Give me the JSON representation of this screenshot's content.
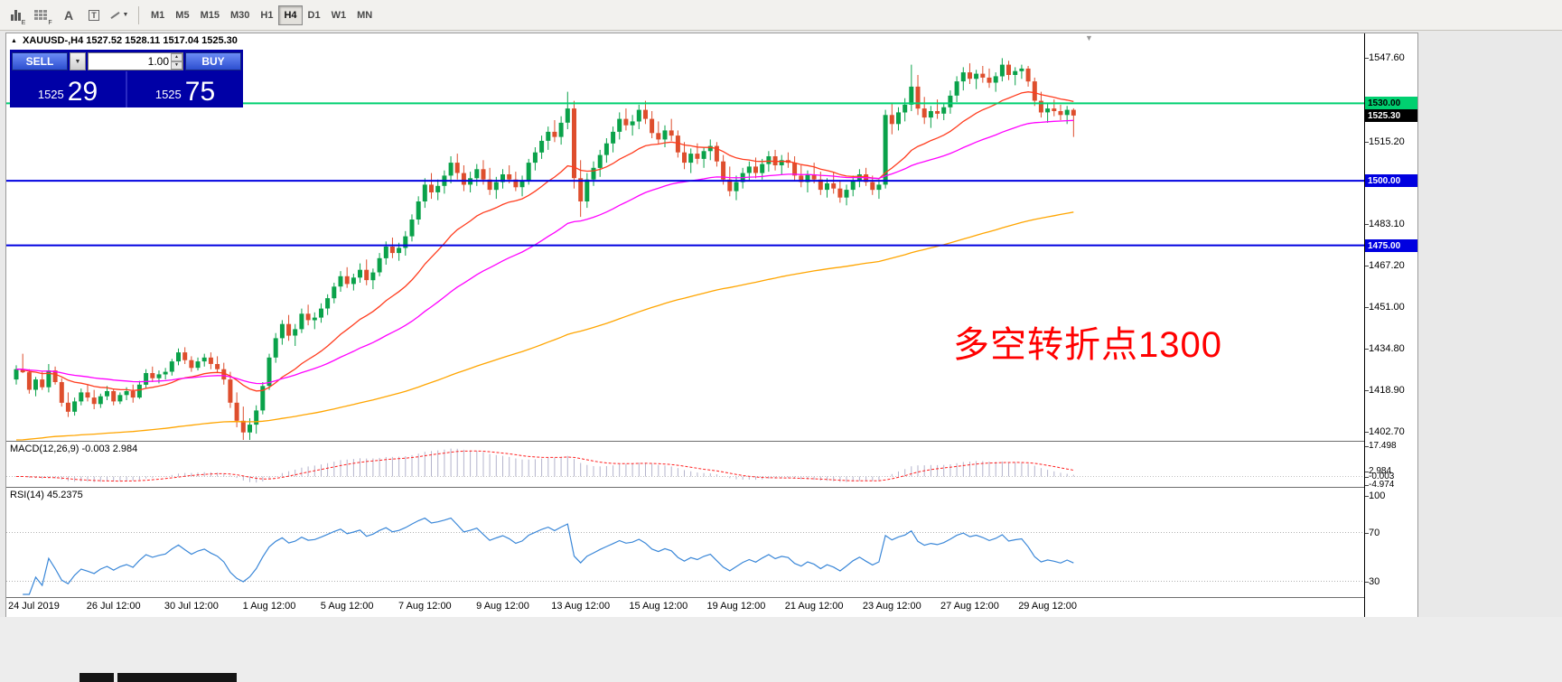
{
  "toolbar": {
    "icons": [
      {
        "name": "bar-chart-icon",
        "sub": "E"
      },
      {
        "name": "grid-icon",
        "sub": "F"
      },
      {
        "name": "text-label-icon",
        "sub": ""
      },
      {
        "name": "text-box-icon",
        "sub": ""
      },
      {
        "name": "line-style-icon",
        "sub": ""
      }
    ],
    "timeframes": [
      "M1",
      "M5",
      "M15",
      "M30",
      "H1",
      "H4",
      "D1",
      "W1",
      "MN"
    ],
    "active_timeframe": "H4"
  },
  "chart": {
    "symbol_timeframe": "XAUUSD-,H4",
    "ohlc_text": "1527.52 1528.11 1517.04 1525.30",
    "open": "1527.52",
    "high": "1528.11",
    "low": "1517.04",
    "close": "1525.30"
  },
  "trade_panel": {
    "sell_label": "SELL",
    "buy_label": "BUY",
    "volume": "1.00",
    "sell_price_small": "1525",
    "sell_price_big": "29",
    "buy_price_small": "1525",
    "buy_price_big": "75"
  },
  "annotation": {
    "text": "多空转折点1300",
    "color": "#ff0000"
  },
  "price_axis": {
    "gridlines": [
      {
        "text": "1547.60",
        "value": 1547.6
      },
      {
        "text": "1515.20",
        "value": 1515.2
      },
      {
        "text": "1483.10",
        "value": 1483.1
      },
      {
        "text": "1467.20",
        "value": 1467.2
      },
      {
        "text": "1451.00",
        "value": 1451.0
      },
      {
        "text": "1434.80",
        "value": 1434.8
      },
      {
        "text": "1418.90",
        "value": 1418.9
      },
      {
        "text": "1402.70",
        "value": 1402.7
      }
    ],
    "tags": [
      {
        "text": "1530.00",
        "value": 1530.0,
        "bg": "#00d070",
        "fg": "#000000"
      },
      {
        "text": "1525.30",
        "value": 1525.3,
        "bg": "#000000",
        "fg": "#ffffff"
      },
      {
        "text": "1500.00",
        "value": 1500.0,
        "bg": "#0000e0",
        "fg": "#ffffff"
      },
      {
        "text": "1475.00",
        "value": 1475.0,
        "bg": "#0000e0",
        "fg": "#ffffff"
      }
    ]
  },
  "hlines": [
    {
      "price": 1530.0,
      "color": "#00d070",
      "width": 2
    },
    {
      "price": 1500.0,
      "color": "#0000e0",
      "width": 2
    },
    {
      "price": 1475.0,
      "color": "#0000e0",
      "width": 2
    }
  ],
  "indicators": {
    "macd": {
      "label": "MACD(12,26,9)",
      "values_text": "-0.003 2.984",
      "fast": 12,
      "slow": 26,
      "signal": 9,
      "axis": [
        {
          "text": "17.498",
          "value": 17.498
        },
        {
          "text": "2.984",
          "value": 2.984
        },
        {
          "text": "-0.003",
          "value": -0.003
        },
        {
          "text": "-4.974",
          "value": -4.974
        }
      ]
    },
    "rsi": {
      "label": "RSI(14)",
      "value_text": "45.2375",
      "period": 14,
      "axis": [
        {
          "text": "100",
          "value": 100
        },
        {
          "text": "70",
          "value": 70
        },
        {
          "text": "30",
          "value": 30
        }
      ],
      "levels": [
        70,
        30
      ]
    }
  },
  "time_axis": {
    "labels": [
      {
        "text": "24 Jul 2019",
        "bar": 1
      },
      {
        "text": "26 Jul 12:00",
        "bar": 15
      },
      {
        "text": "30 Jul 12:00",
        "bar": 27
      },
      {
        "text": "1 Aug 12:00",
        "bar": 39
      },
      {
        "text": "5 Aug 12:00",
        "bar": 51
      },
      {
        "text": "7 Aug 12:00",
        "bar": 63
      },
      {
        "text": "9 Aug 12:00",
        "bar": 75
      },
      {
        "text": "13 Aug 12:00",
        "bar": 87
      },
      {
        "text": "15 Aug 12:00",
        "bar": 99
      },
      {
        "text": "19 Aug 12:00",
        "bar": 111
      },
      {
        "text": "21 Aug 12:00",
        "bar": 123
      },
      {
        "text": "23 Aug 12:00",
        "bar": 135
      },
      {
        "text": "27 Aug 12:00",
        "bar": 147
      },
      {
        "text": "29 Aug 12:00",
        "bar": 159
      }
    ]
  },
  "colors": {
    "up": "#0aa24a",
    "down": "#de4e2d",
    "macd_hist": "#b4b4cc",
    "macd_signal": "#ff2020",
    "rsi_line": "#3a87d8",
    "hline_green": "#00d070",
    "hline_blue": "#0000e0"
  },
  "chart_data": {
    "type": "candlestick",
    "symbol": "XAUUSD-",
    "timeframe": "H4",
    "title": "XAUUSD-,H4 1527.52 1528.11 1517.04 1525.30",
    "ylim": [
      1399.2,
      1555.7
    ],
    "grid": false,
    "x_range": "24 Jul 2019 - 30 Aug 2019",
    "moving_averages": [
      {
        "period": 20,
        "color": "#ff3c1e",
        "seed_offset": 0
      },
      {
        "period": 50,
        "color": "#ff00ff",
        "seed_offset": 0
      },
      {
        "period": 170,
        "color": "#ffa500",
        "seed_offset": -28
      }
    ],
    "candles": [
      [
        1423.0,
        1428.5,
        1421.0,
        1427.0
      ],
      [
        1427.0,
        1433.0,
        1425.5,
        1425.8
      ],
      [
        1425.8,
        1427.0,
        1417.5,
        1419.0
      ],
      [
        1419.0,
        1424.0,
        1416.5,
        1423.0
      ],
      [
        1423.0,
        1426.0,
        1419.0,
        1420.0
      ],
      [
        1420.0,
        1429.0,
        1418.0,
        1426.5
      ],
      [
        1426.5,
        1428.0,
        1421.0,
        1422.0
      ],
      [
        1422.0,
        1423.5,
        1412.5,
        1414.0
      ],
      [
        1414.0,
        1418.0,
        1408.5,
        1410.5
      ],
      [
        1410.5,
        1416.0,
        1409.0,
        1414.5
      ],
      [
        1414.5,
        1419.5,
        1413.0,
        1418.0
      ],
      [
        1418.0,
        1421.0,
        1414.5,
        1416.0
      ],
      [
        1416.0,
        1419.0,
        1411.5,
        1413.5
      ],
      [
        1413.5,
        1417.5,
        1412.0,
        1416.5
      ],
      [
        1416.5,
        1420.5,
        1415.0,
        1418.5
      ],
      [
        1418.5,
        1419.5,
        1413.0,
        1414.5
      ],
      [
        1414.5,
        1418.0,
        1413.5,
        1417.0
      ],
      [
        1417.0,
        1420.0,
        1415.0,
        1418.5
      ],
      [
        1418.5,
        1421.0,
        1414.0,
        1416.0
      ],
      [
        1416.0,
        1422.5,
        1415.5,
        1421.0
      ],
      [
        1421.0,
        1427.0,
        1419.5,
        1425.5
      ],
      [
        1425.5,
        1428.0,
        1422.0,
        1423.5
      ],
      [
        1423.5,
        1426.5,
        1421.5,
        1425.0
      ],
      [
        1425.0,
        1427.5,
        1423.0,
        1426.0
      ],
      [
        1426.0,
        1431.0,
        1424.5,
        1430.0
      ],
      [
        1430.0,
        1435.0,
        1428.5,
        1433.5
      ],
      [
        1433.5,
        1435.5,
        1429.0,
        1430.5
      ],
      [
        1430.5,
        1432.0,
        1426.0,
        1427.5
      ],
      [
        1427.5,
        1431.5,
        1426.5,
        1430.0
      ],
      [
        1430.0,
        1433.0,
        1428.0,
        1431.5
      ],
      [
        1431.5,
        1433.5,
        1427.0,
        1429.0
      ],
      [
        1429.0,
        1432.0,
        1425.5,
        1427.0
      ],
      [
        1427.0,
        1429.5,
        1421.0,
        1423.0
      ],
      [
        1423.0,
        1426.0,
        1412.0,
        1414.0
      ],
      [
        1414.0,
        1418.0,
        1404.5,
        1407.0
      ],
      [
        1407.0,
        1412.5,
        1399.5,
        1402.5
      ],
      [
        1402.5,
        1408.0,
        1398.5,
        1405.5
      ],
      [
        1405.5,
        1413.0,
        1402.0,
        1411.0
      ],
      [
        1411.0,
        1422.0,
        1409.5,
        1420.5
      ],
      [
        1420.5,
        1433.0,
        1419.0,
        1431.5
      ],
      [
        1431.5,
        1441.0,
        1429.5,
        1439.0
      ],
      [
        1439.0,
        1446.0,
        1436.5,
        1444.5
      ],
      [
        1444.5,
        1448.0,
        1438.0,
        1440.0
      ],
      [
        1440.0,
        1444.5,
        1436.0,
        1442.5
      ],
      [
        1442.5,
        1450.5,
        1441.0,
        1448.5
      ],
      [
        1448.5,
        1452.0,
        1444.0,
        1446.0
      ],
      [
        1446.0,
        1449.0,
        1442.5,
        1447.0
      ],
      [
        1447.0,
        1452.5,
        1445.0,
        1450.5
      ],
      [
        1450.5,
        1456.0,
        1448.0,
        1454.5
      ],
      [
        1454.5,
        1460.5,
        1452.5,
        1459.0
      ],
      [
        1459.0,
        1465.0,
        1457.0,
        1463.0
      ],
      [
        1463.0,
        1466.5,
        1458.5,
        1460.0
      ],
      [
        1460.0,
        1464.0,
        1457.5,
        1462.5
      ],
      [
        1462.5,
        1468.0,
        1460.5,
        1465.5
      ],
      [
        1465.5,
        1469.5,
        1459.5,
        1461.5
      ],
      [
        1461.5,
        1466.0,
        1458.0,
        1464.5
      ],
      [
        1464.5,
        1472.0,
        1463.0,
        1470.0
      ],
      [
        1470.0,
        1476.5,
        1467.5,
        1474.5
      ],
      [
        1474.5,
        1478.0,
        1470.0,
        1472.0
      ],
      [
        1472.0,
        1476.0,
        1469.0,
        1474.0
      ],
      [
        1474.0,
        1480.5,
        1471.0,
        1478.5
      ],
      [
        1478.5,
        1487.0,
        1476.5,
        1485.0
      ],
      [
        1485.0,
        1494.0,
        1483.0,
        1492.0
      ],
      [
        1492.0,
        1501.0,
        1489.5,
        1498.5
      ],
      [
        1498.5,
        1503.0,
        1493.0,
        1495.5
      ],
      [
        1495.5,
        1500.5,
        1492.5,
        1498.0
      ],
      [
        1498.0,
        1504.0,
        1495.0,
        1502.0
      ],
      [
        1502.0,
        1509.5,
        1499.0,
        1507.0
      ],
      [
        1507.0,
        1510.5,
        1500.5,
        1503.0
      ],
      [
        1503.0,
        1506.0,
        1496.0,
        1498.5
      ],
      [
        1498.5,
        1503.5,
        1495.5,
        1501.0
      ],
      [
        1501.0,
        1506.5,
        1498.0,
        1504.5
      ],
      [
        1504.5,
        1508.0,
        1498.5,
        1500.5
      ],
      [
        1500.5,
        1505.0,
        1494.5,
        1496.5
      ],
      [
        1496.5,
        1501.5,
        1493.0,
        1499.5
      ],
      [
        1499.5,
        1504.5,
        1497.0,
        1502.5
      ],
      [
        1502.5,
        1506.0,
        1499.0,
        1500.5
      ],
      [
        1500.5,
        1503.5,
        1496.0,
        1497.5
      ],
      [
        1497.5,
        1502.0,
        1494.0,
        1500.0
      ],
      [
        1500.0,
        1508.5,
        1498.5,
        1507.0
      ],
      [
        1507.0,
        1513.0,
        1504.0,
        1511.0
      ],
      [
        1511.0,
        1517.5,
        1508.5,
        1515.5
      ],
      [
        1515.5,
        1521.0,
        1512.0,
        1519.0
      ],
      [
        1519.0,
        1523.5,
        1515.0,
        1517.0
      ],
      [
        1517.0,
        1525.0,
        1514.0,
        1522.5
      ],
      [
        1522.5,
        1534.5,
        1520.0,
        1528.0
      ],
      [
        1528.0,
        1531.0,
        1497.0,
        1501.0
      ],
      [
        1501.0,
        1508.0,
        1486.0,
        1492.0
      ],
      [
        1492.0,
        1503.0,
        1489.5,
        1500.5
      ],
      [
        1500.5,
        1507.5,
        1498.0,
        1505.0
      ],
      [
        1505.0,
        1512.0,
        1501.5,
        1510.0
      ],
      [
        1510.0,
        1516.5,
        1507.0,
        1514.5
      ],
      [
        1514.5,
        1521.0,
        1511.0,
        1519.0
      ],
      [
        1519.0,
        1526.5,
        1516.0,
        1524.0
      ],
      [
        1524.0,
        1528.0,
        1519.5,
        1521.5
      ],
      [
        1521.5,
        1525.5,
        1517.5,
        1523.0
      ],
      [
        1523.0,
        1529.5,
        1520.0,
        1527.5
      ],
      [
        1527.5,
        1531.0,
        1522.0,
        1524.0
      ],
      [
        1524.0,
        1527.0,
        1516.5,
        1518.5
      ],
      [
        1518.5,
        1523.0,
        1514.0,
        1516.0
      ],
      [
        1516.0,
        1521.5,
        1513.0,
        1519.5
      ],
      [
        1519.5,
        1524.0,
        1515.5,
        1517.5
      ],
      [
        1517.5,
        1519.5,
        1509.0,
        1511.0
      ],
      [
        1511.0,
        1515.0,
        1504.5,
        1507.0
      ],
      [
        1507.0,
        1512.5,
        1503.0,
        1510.5
      ],
      [
        1510.5,
        1514.5,
        1506.5,
        1508.5
      ],
      [
        1508.5,
        1513.0,
        1505.0,
        1511.5
      ],
      [
        1511.5,
        1516.0,
        1508.0,
        1513.5
      ],
      [
        1513.5,
        1515.0,
        1505.5,
        1507.5
      ],
      [
        1507.5,
        1510.0,
        1498.5,
        1500.5
      ],
      [
        1500.5,
        1505.5,
        1494.0,
        1496.0
      ],
      [
        1496.0,
        1502.0,
        1492.5,
        1499.5
      ],
      [
        1499.5,
        1505.0,
        1497.0,
        1503.0
      ],
      [
        1503.0,
        1507.5,
        1500.0,
        1505.5
      ],
      [
        1505.5,
        1509.0,
        1501.0,
        1503.0
      ],
      [
        1503.0,
        1508.5,
        1500.5,
        1506.5
      ],
      [
        1506.5,
        1511.5,
        1503.5,
        1509.5
      ],
      [
        1509.5,
        1512.0,
        1504.0,
        1506.0
      ],
      [
        1506.0,
        1510.0,
        1502.5,
        1508.0
      ],
      [
        1508.0,
        1511.0,
        1505.0,
        1507.0
      ],
      [
        1507.0,
        1509.5,
        1500.0,
        1502.0
      ],
      [
        1502.0,
        1506.0,
        1497.5,
        1499.5
      ],
      [
        1499.5,
        1504.0,
        1495.5,
        1502.5
      ],
      [
        1502.5,
        1507.0,
        1499.0,
        1500.5
      ],
      [
        1500.5,
        1503.5,
        1494.5,
        1496.5
      ],
      [
        1496.5,
        1501.0,
        1493.5,
        1499.0
      ],
      [
        1499.0,
        1503.5,
        1495.0,
        1497.0
      ],
      [
        1497.0,
        1500.0,
        1491.5,
        1493.5
      ],
      [
        1493.5,
        1498.5,
        1490.5,
        1496.5
      ],
      [
        1496.5,
        1502.0,
        1494.0,
        1500.0
      ],
      [
        1500.0,
        1504.5,
        1497.5,
        1502.5
      ],
      [
        1502.5,
        1505.0,
        1498.0,
        1499.5
      ],
      [
        1499.5,
        1502.0,
        1494.5,
        1496.5
      ],
      [
        1496.5,
        1500.5,
        1493.0,
        1498.5
      ],
      [
        1498.5,
        1527.5,
        1497.0,
        1525.5
      ],
      [
        1525.5,
        1530.0,
        1518.0,
        1522.0
      ],
      [
        1522.0,
        1528.5,
        1519.5,
        1526.5
      ],
      [
        1526.5,
        1532.0,
        1523.0,
        1529.5
      ],
      [
        1529.5,
        1545.0,
        1527.0,
        1536.5
      ],
      [
        1536.5,
        1541.0,
        1525.5,
        1528.0
      ],
      [
        1528.0,
        1532.5,
        1522.0,
        1524.5
      ],
      [
        1524.5,
        1529.0,
        1520.5,
        1527.0
      ],
      [
        1527.0,
        1531.5,
        1524.0,
        1526.0
      ],
      [
        1526.0,
        1530.0,
        1523.5,
        1528.5
      ],
      [
        1528.5,
        1535.0,
        1526.0,
        1533.0
      ],
      [
        1533.0,
        1540.5,
        1530.5,
        1538.5
      ],
      [
        1538.5,
        1544.0,
        1535.0,
        1542.0
      ],
      [
        1542.0,
        1545.5,
        1537.5,
        1539.5
      ],
      [
        1539.5,
        1543.0,
        1535.5,
        1541.5
      ],
      [
        1541.5,
        1544.5,
        1538.0,
        1540.0
      ],
      [
        1540.0,
        1543.5,
        1536.0,
        1538.0
      ],
      [
        1538.0,
        1542.0,
        1534.5,
        1540.5
      ],
      [
        1540.5,
        1547.5,
        1538.5,
        1545.0
      ],
      [
        1545.0,
        1546.5,
        1539.0,
        1541.0
      ],
      [
        1541.0,
        1544.0,
        1537.0,
        1542.5
      ],
      [
        1542.5,
        1545.0,
        1539.5,
        1543.5
      ],
      [
        1543.5,
        1544.5,
        1536.5,
        1538.5
      ],
      [
        1538.5,
        1540.0,
        1529.0,
        1531.0
      ],
      [
        1531.0,
        1534.5,
        1524.5,
        1526.5
      ],
      [
        1526.5,
        1530.0,
        1522.5,
        1528.0
      ],
      [
        1528.0,
        1531.5,
        1525.0,
        1527.0
      ],
      [
        1527.0,
        1529.5,
        1523.5,
        1525.5
      ],
      [
        1525.5,
        1529.0,
        1522.0,
        1527.5
      ],
      [
        1527.5,
        1528.1,
        1517.0,
        1525.3
      ]
    ]
  }
}
